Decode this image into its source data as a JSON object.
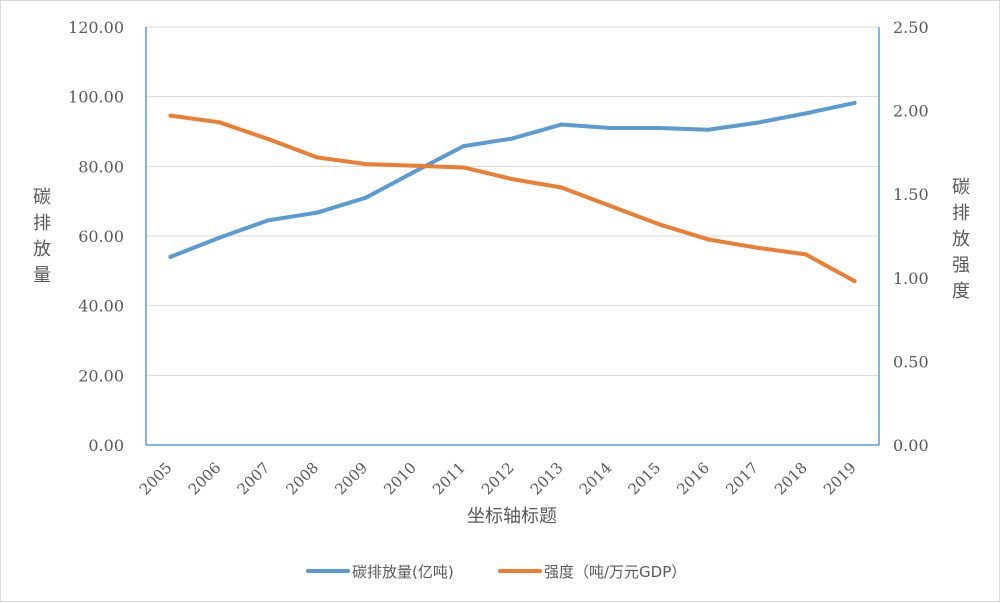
{
  "chart_data": {
    "type": "line",
    "categories": [
      "2005",
      "2006",
      "2007",
      "2008",
      "2009",
      "2010",
      "2011",
      "2012",
      "2013",
      "2014",
      "2015",
      "2016",
      "2017",
      "2018",
      "2019"
    ],
    "series": [
      {
        "name": "碳排放量(亿吨)",
        "axis": "left",
        "color": "#5b9bd5",
        "values": [
          54.0,
          59.5,
          64.5,
          66.7,
          71.0,
          78.5,
          85.8,
          88.0,
          92.0,
          91.0,
          91.0,
          90.5,
          92.5,
          95.2,
          98.2
        ]
      },
      {
        "name": "强度（吨/万元GDP）",
        "axis": "right",
        "color": "#ed7d31",
        "values": [
          1.97,
          1.93,
          1.83,
          1.72,
          1.68,
          1.67,
          1.66,
          1.59,
          1.54,
          1.43,
          1.32,
          1.23,
          1.18,
          1.14,
          0.98
        ]
      }
    ],
    "y_left": {
      "label": "碳排放量",
      "ylim": [
        0,
        120
      ],
      "ticks": [
        "0.00",
        "20.00",
        "40.00",
        "60.00",
        "80.00",
        "100.00",
        "120.00"
      ]
    },
    "y_right": {
      "label": "碳排放强度",
      "ylim": [
        0,
        2.5
      ],
      "ticks": [
        "0.00",
        "0.50",
        "1.00",
        "1.50",
        "2.00",
        "2.50"
      ]
    },
    "xlabel": "坐标轴标题",
    "grid": true,
    "legend_position": "bottom"
  }
}
